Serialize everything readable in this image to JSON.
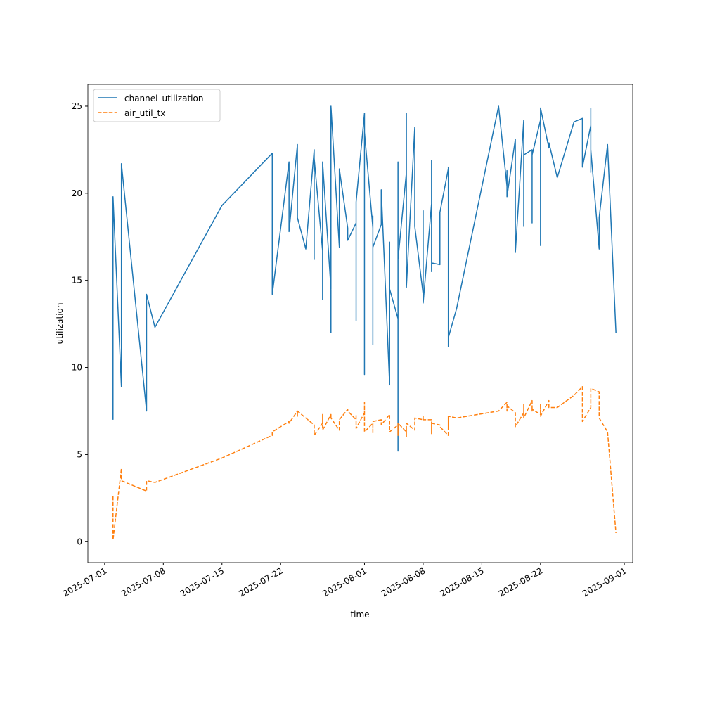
{
  "chart_data": {
    "type": "line",
    "x_label": "time",
    "y_label": "utilization",
    "x": [
      "2025-07-02",
      "2025-07-02",
      "2025-07-03",
      "2025-07-03",
      "2025-07-06",
      "2025-07-06",
      "2025-07-07",
      "2025-07-15",
      "2025-07-21",
      "2025-07-21",
      "2025-07-23",
      "2025-07-23",
      "2025-07-24",
      "2025-07-24",
      "2025-07-24",
      "2025-07-25",
      "2025-07-26",
      "2025-07-26",
      "2025-07-26",
      "2025-07-27",
      "2025-07-27",
      "2025-07-27",
      "2025-07-27",
      "2025-07-28",
      "2025-07-28",
      "2025-07-28",
      "2025-07-28",
      "2025-07-29",
      "2025-07-29",
      "2025-07-29",
      "2025-07-30",
      "2025-07-30",
      "2025-07-31",
      "2025-07-31",
      "2025-07-31",
      "2025-08-01",
      "2025-08-01",
      "2025-08-01",
      "2025-08-02",
      "2025-08-02",
      "2025-08-02",
      "2025-08-02",
      "2025-08-02",
      "2025-08-03",
      "2025-08-03",
      "2025-08-04",
      "2025-08-04",
      "2025-08-04",
      "2025-08-05",
      "2025-08-05",
      "2025-08-05",
      "2025-08-05",
      "2025-08-06",
      "2025-08-06",
      "2025-08-06",
      "2025-08-06",
      "2025-08-07",
      "2025-08-07",
      "2025-08-07",
      "2025-08-08",
      "2025-08-08",
      "2025-08-08",
      "2025-08-08",
      "2025-08-09",
      "2025-08-09",
      "2025-08-09",
      "2025-08-09",
      "2025-08-09",
      "2025-08-10",
      "2025-08-10",
      "2025-08-11",
      "2025-08-11",
      "2025-08-11",
      "2025-08-11",
      "2025-08-11",
      "2025-08-11",
      "2025-08-12",
      "2025-08-17",
      "2025-08-18",
      "2025-08-18",
      "2025-08-18",
      "2025-08-18",
      "2025-08-19",
      "2025-08-19",
      "2025-08-20",
      "2025-08-20",
      "2025-08-20",
      "2025-08-21",
      "2025-08-21",
      "2025-08-21",
      "2025-08-22",
      "2025-08-22",
      "2025-08-22",
      "2025-08-22",
      "2025-08-23",
      "2025-08-23",
      "2025-08-24",
      "2025-08-26",
      "2025-08-27",
      "2025-08-27",
      "2025-08-28",
      "2025-08-28",
      "2025-08-28",
      "2025-08-28",
      "2025-08-29",
      "2025-08-29",
      "2025-08-30",
      "2025-08-31"
    ],
    "series": [
      {
        "name": "channel_utilization",
        "color": "#1f77b4",
        "linestyle": "solid",
        "values": [
          7.0,
          19.8,
          8.9,
          21.7,
          7.5,
          14.2,
          12.3,
          19.3,
          22.3,
          14.2,
          21.8,
          17.8,
          22.8,
          22.4,
          18.6,
          16.8,
          22.5,
          16.2,
          22.0,
          16.7,
          19.1,
          13.9,
          21.8,
          14.5,
          17.2,
          12.0,
          25.0,
          16.9,
          21.3,
          21.4,
          18.0,
          17.3,
          18.3,
          12.7,
          19.5,
          24.6,
          9.6,
          23.5,
          18.0,
          18.7,
          11.3,
          16.6,
          16.9,
          18.2,
          20.2,
          9.0,
          17.2,
          14.5,
          12.8,
          21.8,
          5.2,
          16.2,
          21.2,
          19.4,
          24.6,
          14.6,
          23.8,
          18.1,
          18.1,
          14.2,
          19.0,
          18.8,
          13.7,
          19.4,
          15.9,
          15.5,
          21.9,
          16.0,
          15.9,
          18.9,
          21.4,
          20.8,
          21.5,
          11.2,
          14.9,
          11.7,
          13.4,
          25.0,
          20.4,
          20.6,
          21.3,
          19.8,
          23.1,
          16.6,
          24.2,
          18.1,
          22.2,
          22.5,
          18.3,
          22.2,
          24.2,
          17.0,
          23.2,
          24.9,
          22.6,
          22.9,
          20.9,
          24.1,
          24.3,
          21.5,
          23.9,
          21.2,
          24.9,
          22.5,
          16.8,
          18.6,
          22.8,
          12.0
        ]
      },
      {
        "name": "air_util_tx",
        "color": "#ff7f0e",
        "linestyle": "dashed",
        "values": [
          2.6,
          0.1,
          4.2,
          3.5,
          2.9,
          3.5,
          3.4,
          4.8,
          6.1,
          6.3,
          6.9,
          6.8,
          7.5,
          7.2,
          7.5,
          7.1,
          6.7,
          6.1,
          6.1,
          6.8,
          6.8,
          7.3,
          6.4,
          7.3,
          7.2,
          7.3,
          7.1,
          6.4,
          6.8,
          7.0,
          7.6,
          7.5,
          7.0,
          7.3,
          6.5,
          7.4,
          8.0,
          6.3,
          6.8,
          6.6,
          6.5,
          6.2,
          6.9,
          7.0,
          6.7,
          7.3,
          6.4,
          6.3,
          6.7,
          6.8,
          6.1,
          6.8,
          6.3,
          6.6,
          6.0,
          6.8,
          6.4,
          6.6,
          7.1,
          7.0,
          7.2,
          7.1,
          7.0,
          7.0,
          6.6,
          6.2,
          6.6,
          6.8,
          6.7,
          6.6,
          6.1,
          6.5,
          7.2,
          7.1,
          6.6,
          7.2,
          7.1,
          7.5,
          8.0,
          7.9,
          7.5,
          7.8,
          7.4,
          6.6,
          7.4,
          7.9,
          7.1,
          8.1,
          7.5,
          7.6,
          7.3,
          7.8,
          7.9,
          7.2,
          8.1,
          7.7,
          7.7,
          8.4,
          8.9,
          6.9,
          7.7,
          7.7,
          7.8,
          8.8,
          8.6,
          7.1,
          6.3,
          0.5
        ]
      }
    ],
    "xlim": [
      "2025-06-29",
      "2025-09-02"
    ],
    "xticks": [
      "2025-07-01",
      "2025-07-08",
      "2025-07-15",
      "2025-07-22",
      "2025-08-01",
      "2025-08-08",
      "2025-08-15",
      "2025-08-22",
      "2025-09-01"
    ],
    "ylim": [
      -1.2,
      26.25
    ],
    "yticks": [
      0,
      5,
      10,
      15,
      20,
      25
    ],
    "grid": false,
    "legend": "upper left"
  }
}
